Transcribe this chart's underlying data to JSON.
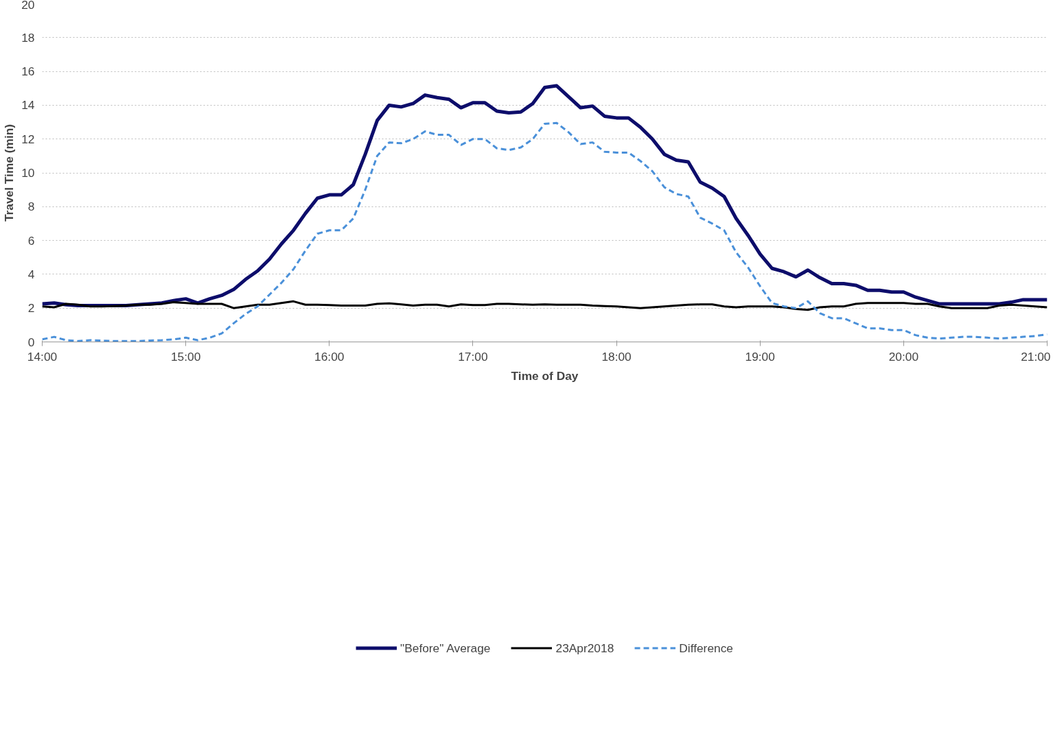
{
  "chart_data": {
    "type": "line",
    "xlabel": "Time of Day",
    "ylabel": "Travel Time (min)",
    "x": [
      14,
      14.0833,
      14.1667,
      14.25,
      14.3333,
      14.4167,
      14.5,
      14.5833,
      14.6667,
      14.75,
      14.8333,
      14.9167,
      15,
      15.0833,
      15.1667,
      15.25,
      15.3333,
      15.4167,
      15.5,
      15.5833,
      15.6667,
      15.75,
      15.8333,
      15.9167,
      16,
      16.0833,
      16.1667,
      16.25,
      16.3333,
      16.4167,
      16.5,
      16.5833,
      16.6667,
      16.75,
      16.8333,
      16.9167,
      17,
      17.0833,
      17.1667,
      17.25,
      17.3333,
      17.4167,
      17.5,
      17.5833,
      17.6667,
      17.75,
      17.8333,
      17.9167,
      18,
      18.0833,
      18.1667,
      18.25,
      18.3333,
      18.4167,
      18.5,
      18.5833,
      18.6667,
      18.75,
      18.8333,
      18.9167,
      19,
      19.0833,
      19.1667,
      19.25,
      19.3333,
      19.4167,
      19.5,
      19.5833,
      19.6667,
      19.75,
      19.8333,
      19.9167,
      20,
      20.0833,
      20.1667,
      20.25,
      20.3333,
      20.4167,
      20.5,
      20.5833,
      20.6667,
      20.75,
      20.8333,
      20.9167,
      21
    ],
    "xlim": [
      14,
      21
    ],
    "xticks": [
      {
        "value": 14,
        "label": "14:00"
      },
      {
        "value": 15,
        "label": "15:00"
      },
      {
        "value": 16,
        "label": "16:00"
      },
      {
        "value": 17,
        "label": "17:00"
      },
      {
        "value": 18,
        "label": "18:00"
      },
      {
        "value": 19,
        "label": "19:00"
      },
      {
        "value": 20,
        "label": "20:00"
      },
      {
        "value": 21,
        "label": "21:00"
      }
    ],
    "ylim": [
      0,
      20
    ],
    "yticks": [
      0,
      2,
      4,
      6,
      8,
      10,
      12,
      14,
      16,
      18,
      20
    ],
    "grid": "y",
    "legend": "bottom",
    "marker": "none",
    "series": [
      {
        "name": "\"Before\" Average",
        "color": "#0d0d6b",
        "line_style": "solid",
        "values": [
          2.25,
          2.3,
          2.2,
          2.15,
          2.15,
          2.15,
          2.15,
          2.15,
          2.2,
          2.25,
          2.3,
          2.45,
          2.55,
          2.3,
          2.55,
          2.75,
          3.1,
          3.7,
          4.2,
          4.9,
          5.8,
          6.6,
          7.6,
          8.5,
          8.7,
          8.7,
          9.3,
          11.1,
          13.1,
          14.0,
          13.9,
          14.1,
          14.6,
          14.45,
          14.35,
          13.85,
          14.15,
          14.15,
          13.65,
          13.55,
          13.6,
          14.1,
          15.05,
          15.15,
          14.5,
          13.85,
          13.95,
          13.35,
          13.25,
          13.25,
          12.7,
          12.0,
          11.1,
          10.75,
          10.65,
          9.45,
          9.1,
          8.6,
          7.3,
          6.3,
          5.2,
          4.35,
          4.15,
          3.85,
          4.25,
          3.8,
          3.45,
          3.45,
          3.35,
          3.05,
          3.05,
          2.95,
          2.95,
          2.65,
          2.45,
          2.25,
          2.25,
          2.25,
          2.25,
          2.25,
          2.25,
          2.35,
          2.5,
          2.5,
          2.5
        ]
      },
      {
        "name": "23Apr2018",
        "color": "#000000",
        "line_style": "solid",
        "values": [
          2.1,
          2.05,
          2.25,
          2.2,
          2.1,
          2.1,
          2.12,
          2.15,
          2.2,
          2.2,
          2.25,
          2.35,
          2.3,
          2.25,
          2.25,
          2.25,
          2.0,
          2.1,
          2.2,
          2.2,
          2.3,
          2.4,
          2.2,
          2.2,
          2.18,
          2.15,
          2.15,
          2.15,
          2.25,
          2.28,
          2.22,
          2.15,
          2.2,
          2.2,
          2.1,
          2.22,
          2.18,
          2.18,
          2.25,
          2.25,
          2.22,
          2.2,
          2.22,
          2.2,
          2.2,
          2.2,
          2.15,
          2.12,
          2.1,
          2.05,
          2.0,
          2.05,
          2.1,
          2.15,
          2.2,
          2.22,
          2.22,
          2.1,
          2.05,
          2.1,
          2.1,
          2.1,
          2.05,
          1.95,
          1.9,
          2.05,
          2.1,
          2.1,
          2.25,
          2.3,
          2.3,
          2.3,
          2.3,
          2.25,
          2.25,
          2.1,
          2.0,
          2.0,
          2.0,
          2.0,
          2.15,
          2.2,
          2.15,
          2.1,
          2.05
        ]
      },
      {
        "name": "Difference",
        "color": "#4a90d9",
        "line_style": "dashed",
        "values": [
          0.15,
          0.3,
          0.1,
          0.05,
          0.1,
          0.08,
          0.05,
          0.05,
          0.05,
          0.08,
          0.1,
          0.15,
          0.25,
          0.1,
          0.25,
          0.5,
          1.1,
          1.65,
          2.1,
          2.8,
          3.5,
          4.3,
          5.4,
          6.4,
          6.6,
          6.6,
          7.3,
          9.0,
          11.0,
          11.8,
          11.75,
          12.0,
          12.45,
          12.25,
          12.25,
          11.65,
          12.0,
          12.0,
          11.45,
          11.35,
          11.5,
          12.0,
          12.9,
          12.95,
          12.4,
          11.7,
          11.8,
          11.25,
          11.2,
          11.2,
          10.7,
          10.1,
          9.15,
          8.75,
          8.6,
          7.35,
          7.0,
          6.6,
          5.3,
          4.4,
          3.3,
          2.3,
          2.1,
          2.0,
          2.4,
          1.7,
          1.4,
          1.4,
          1.1,
          0.8,
          0.8,
          0.7,
          0.7,
          0.4,
          0.25,
          0.2,
          0.25,
          0.3,
          0.3,
          0.25,
          0.2,
          0.25,
          0.3,
          0.35,
          0.45
        ]
      }
    ]
  }
}
